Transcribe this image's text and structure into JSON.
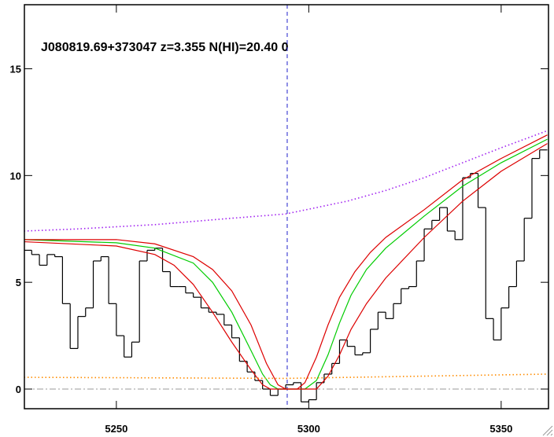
{
  "chart_data": {
    "type": "line",
    "title": "J080819.69+373047 z=3.355 N(HI)=20.40 0",
    "xlim": [
      5226.1,
      5362.3
    ],
    "ylim": [
      -0.92,
      18
    ],
    "xticks": [
      5250,
      5300,
      5350
    ],
    "yticks": [
      0,
      5,
      10,
      15
    ],
    "vline": 5294.4,
    "hline": 0,
    "series": [
      {
        "style": "step",
        "color": "#000000",
        "x": [
          5227,
          5229,
          5231,
          5233,
          5235,
          5237,
          5239,
          5241,
          5243,
          5245,
          5247,
          5249,
          5251,
          5253,
          5255,
          5257,
          5259,
          5261,
          5263,
          5265,
          5267,
          5269,
          5271,
          5273,
          5275,
          5277,
          5279,
          5281,
          5283,
          5285,
          5287,
          5289,
          5291,
          5293,
          5295,
          5297,
          5299,
          5301,
          5303,
          5305,
          5307,
          5309,
          5311,
          5313,
          5315,
          5317,
          5319,
          5321,
          5323,
          5325,
          5327,
          5329,
          5331,
          5333,
          5335,
          5337,
          5339,
          5341,
          5343,
          5345,
          5347,
          5349,
          5351,
          5353,
          5355,
          5357,
          5359,
          5361
        ],
        "values": [
          6.5,
          6.3,
          5.8,
          6.3,
          6.2,
          4.0,
          1.9,
          3.4,
          3.8,
          6.0,
          6.2,
          4.0,
          2.5,
          1.5,
          2.2,
          6.0,
          6.5,
          6.6,
          5.5,
          4.8,
          4.8,
          4.5,
          4.3,
          3.8,
          3.6,
          3.5,
          3.0,
          2.4,
          1.3,
          0.8,
          0.4,
          0.0,
          -0.3,
          0.0,
          0.2,
          0.3,
          -0.6,
          -0.5,
          0.3,
          0.7,
          1.2,
          2.3,
          2.0,
          1.6,
          1.7,
          2.8,
          3.6,
          3.3,
          4.0,
          4.7,
          4.8,
          6.0,
          7.5,
          7.9,
          8.5,
          7.4,
          7.0,
          9.9,
          10.1,
          8.5,
          3.3,
          2.3,
          3.8,
          4.8,
          6.0,
          8.0,
          10.8,
          11.2
        ]
      },
      {
        "style": "dotted",
        "color": "#a020f0",
        "x": [
          5226,
          5240,
          5260,
          5280,
          5294,
          5310,
          5320,
          5330,
          5340,
          5350,
          5362
        ],
        "values": [
          7.4,
          7.5,
          7.7,
          8.0,
          8.2,
          8.8,
          9.3,
          9.9,
          10.6,
          11.3,
          12.1
        ]
      },
      {
        "style": "line",
        "color": "#00cc00",
        "x": [
          5226,
          5250,
          5260,
          5270,
          5275,
          5280,
          5285,
          5288,
          5290,
          5292,
          5296,
          5299,
          5302,
          5305,
          5308,
          5311,
          5315,
          5320,
          5330,
          5340,
          5350,
          5362
        ],
        "values": [
          7.0,
          6.85,
          6.6,
          5.9,
          5.0,
          3.6,
          1.8,
          0.7,
          0.2,
          0.0,
          0.0,
          0.0,
          0.4,
          1.6,
          3.1,
          4.4,
          5.6,
          6.6,
          8.1,
          9.5,
          10.6,
          11.7
        ]
      },
      {
        "style": "line",
        "color": "#dd0000",
        "x": [
          5226,
          5250,
          5260,
          5270,
          5275,
          5280,
          5285,
          5289,
          5292,
          5294,
          5297,
          5299,
          5302,
          5305,
          5308,
          5312,
          5316,
          5320,
          5330,
          5340,
          5350,
          5362
        ],
        "values": [
          7.0,
          7.0,
          6.8,
          6.2,
          5.6,
          4.6,
          3.0,
          1.2,
          0.2,
          0.0,
          0.0,
          0.3,
          1.5,
          3.0,
          4.3,
          5.5,
          6.4,
          7.1,
          8.4,
          9.8,
          10.8,
          11.9
        ]
      },
      {
        "style": "line",
        "color": "#dd0000",
        "x": [
          5226,
          5250,
          5260,
          5265,
          5270,
          5275,
          5280,
          5285,
          5288,
          5290,
          5302,
          5305,
          5308,
          5311,
          5315,
          5320,
          5330,
          5340,
          5350,
          5362
        ],
        "values": [
          6.9,
          6.7,
          6.3,
          5.8,
          4.9,
          3.6,
          2.2,
          0.9,
          0.2,
          0.0,
          0.0,
          0.6,
          1.6,
          2.8,
          4.0,
          5.2,
          7.1,
          8.8,
          10.2,
          11.5
        ]
      },
      {
        "style": "dotted",
        "color": "#ff8c00",
        "x": [
          5226,
          5294,
          5362
        ],
        "values": [
          0.55,
          0.5,
          0.7
        ]
      }
    ]
  }
}
